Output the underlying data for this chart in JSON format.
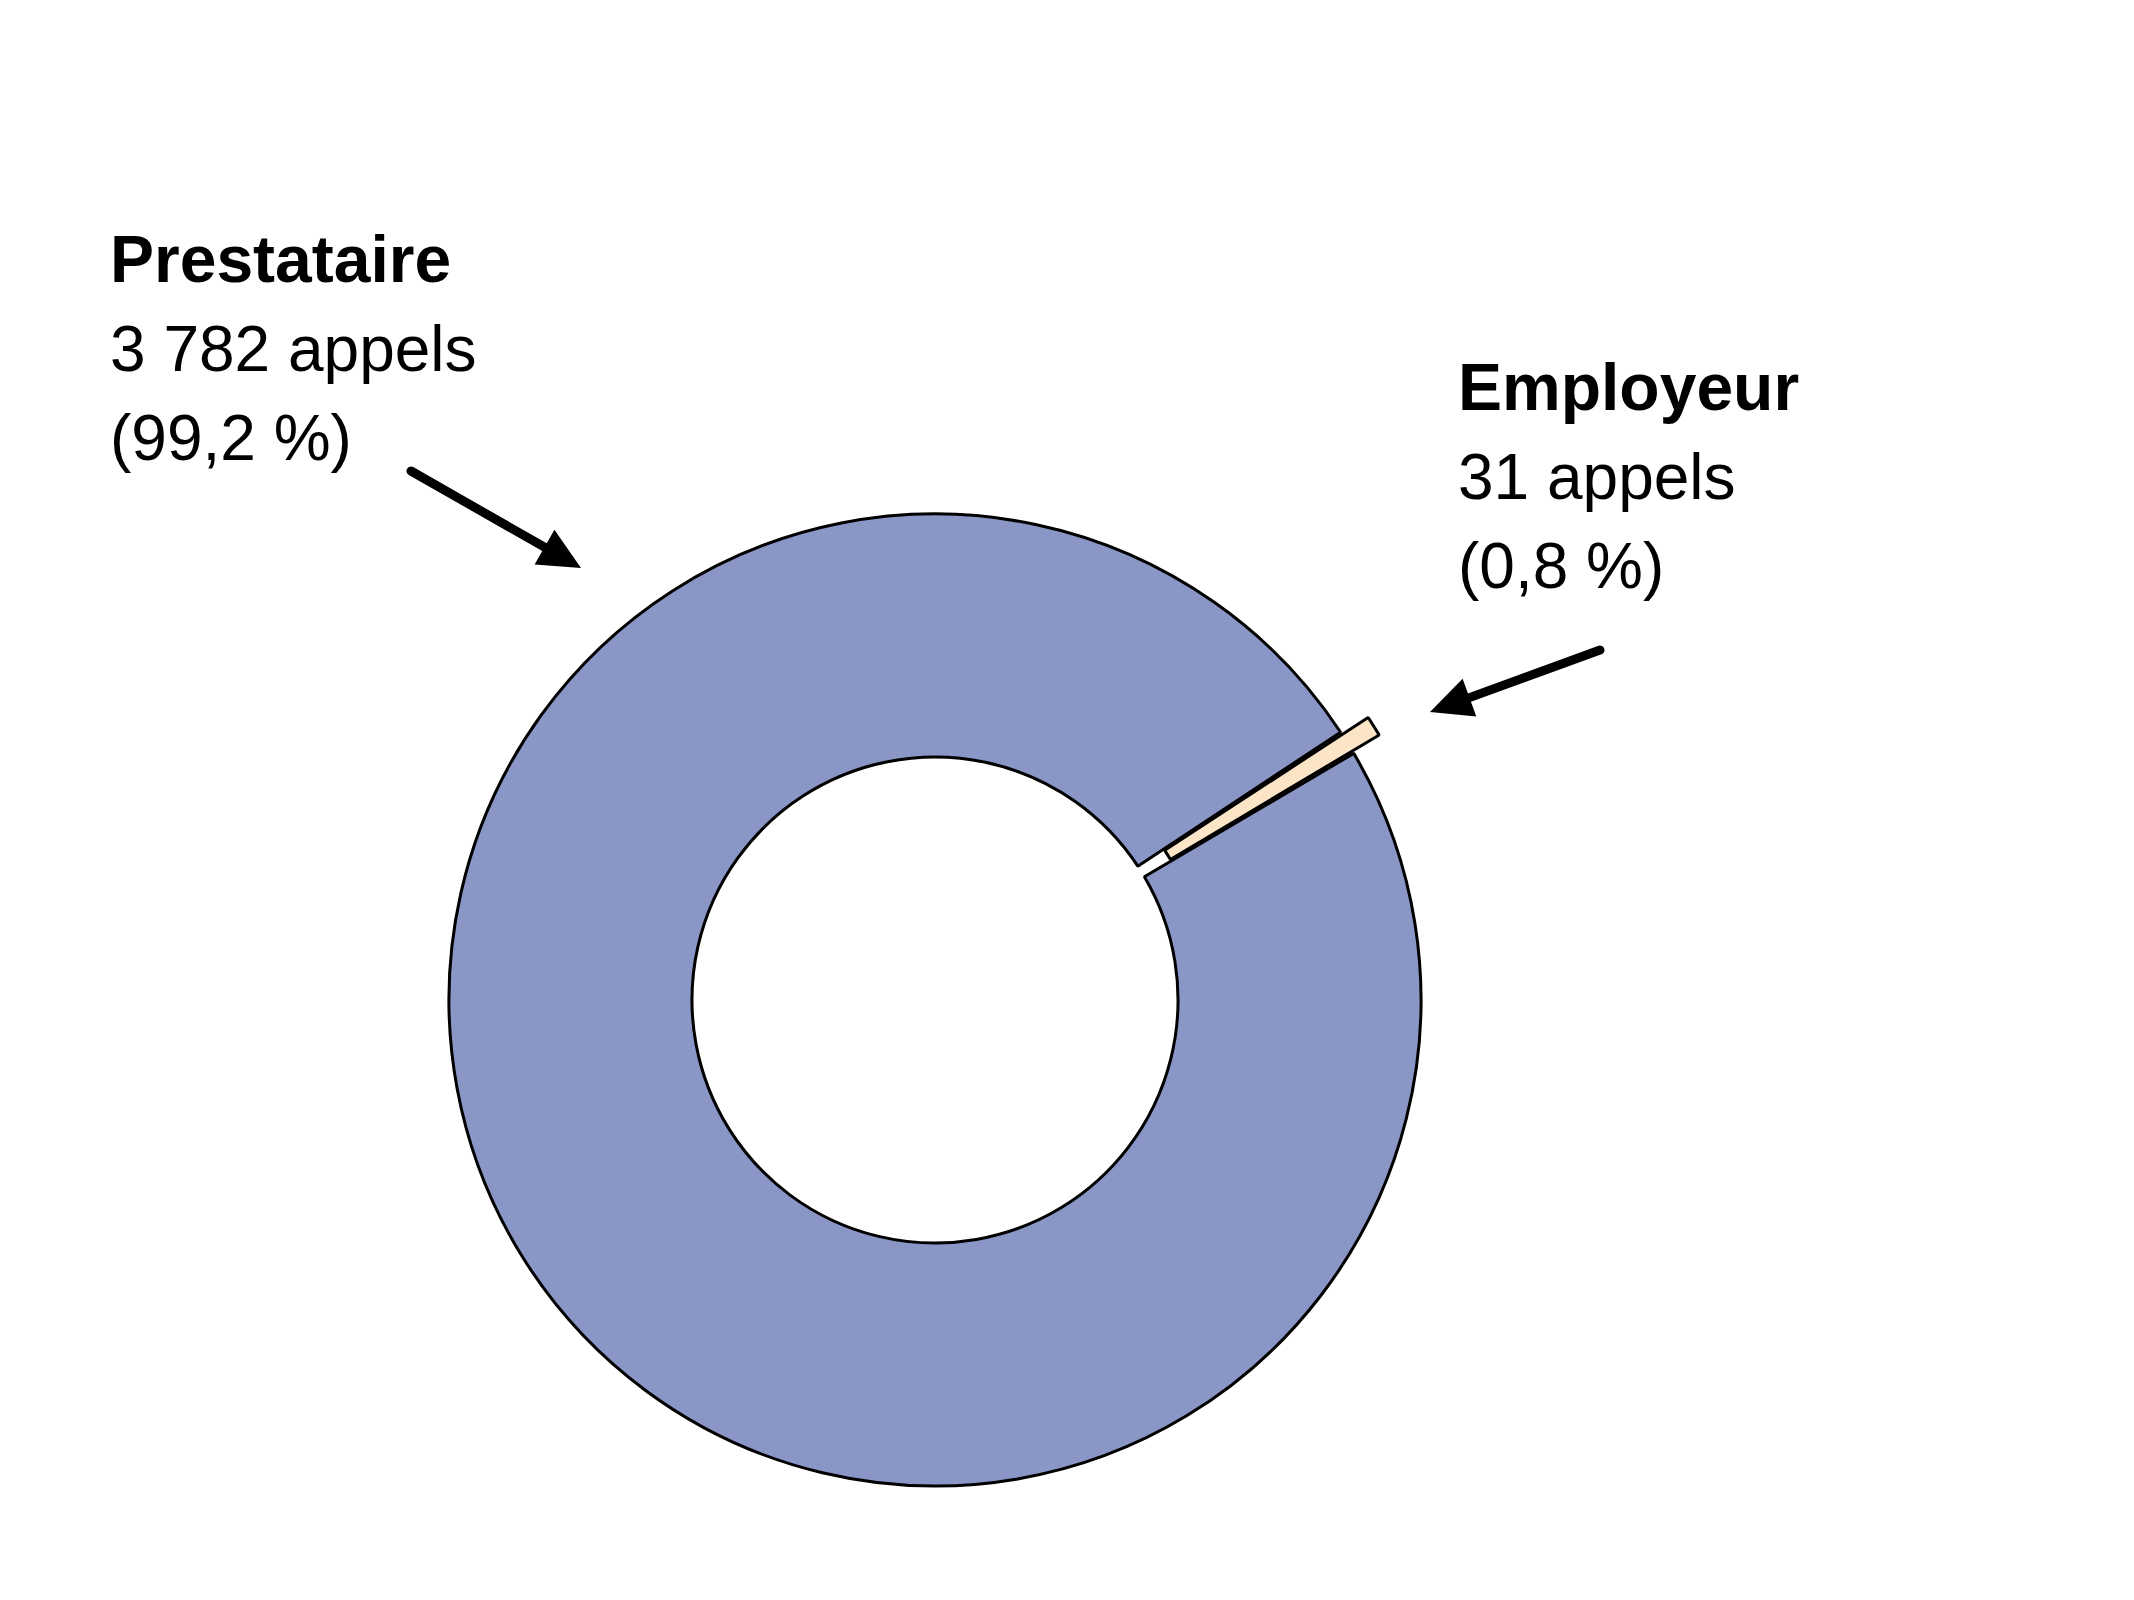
{
  "chart_data": {
    "type": "donut",
    "categories": [
      "Prestataire",
      "Employeur"
    ],
    "values": [
      3782,
      31
    ],
    "colors": [
      "#8a96c6",
      "#fbe5c6"
    ],
    "value_labels": [
      "3 782 appels\n(99,2 %)",
      "31 appels\n(0,8 %)"
    ],
    "legend": false
  }
}
